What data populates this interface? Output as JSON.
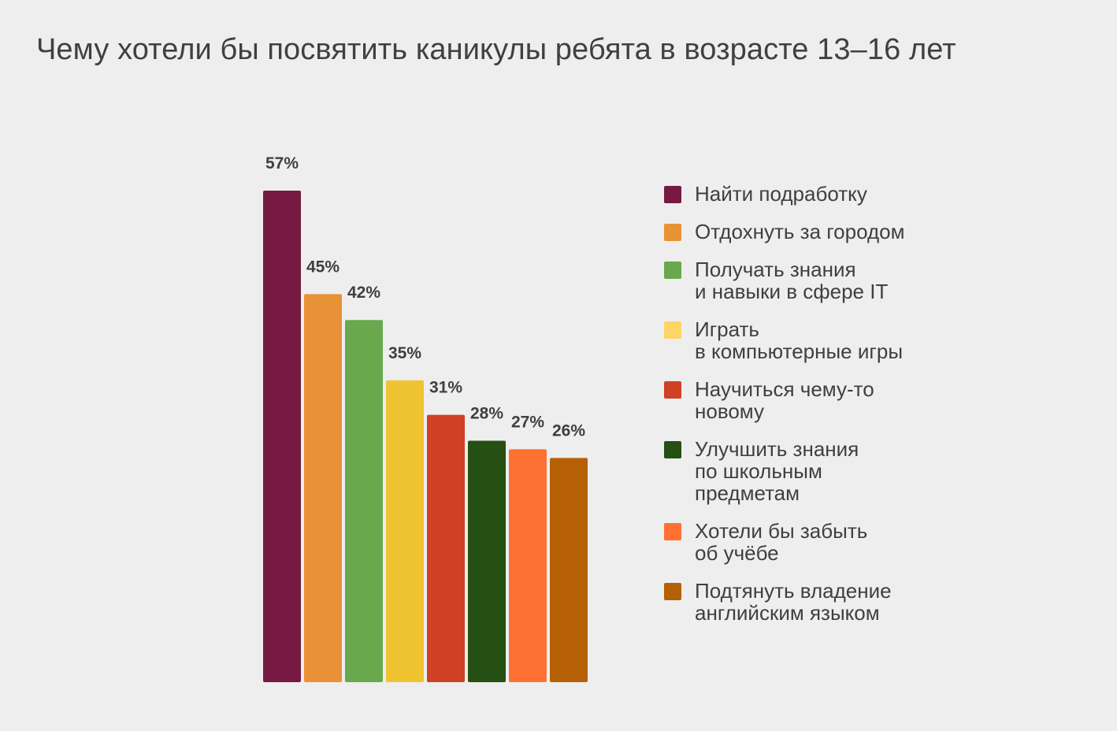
{
  "chart_data": {
    "type": "bar",
    "title": "Чему хотели бы посвятить каникулы ребята в возрасте 13–16 лет",
    "categories": [
      "Найти подработку",
      "Отдохнуть за городом",
      "Получать знания\nи навыки в сфере IT",
      "Играть\nв компьютерные игры",
      "Научиться чему-то\nновому",
      "Улучшить знания\nпо школьным\nпредметам",
      "Хотели бы забыть\nоб учёбе",
      "Подтянуть владение\nанглийским языком"
    ],
    "values": [
      57,
      45,
      42,
      35,
      31,
      28,
      27,
      26
    ],
    "value_labels": [
      "57%",
      "45%",
      "42%",
      "35%",
      "31%",
      "28%",
      "27%",
      "26%"
    ],
    "colors": [
      "#771a43",
      "#e89136",
      "#69a84d",
      "#f0c431",
      "#cf4125",
      "#264f13",
      "#ff7033",
      "#b56005"
    ],
    "legend_colors": [
      "#771a43",
      "#e89136",
      "#69a84d",
      "#fdd564",
      "#cf4125",
      "#264f13",
      "#ff7033",
      "#b56005"
    ],
    "ylim": [
      0,
      57
    ],
    "grid": false,
    "legend_position": "right",
    "xlabel": "",
    "ylabel": ""
  }
}
